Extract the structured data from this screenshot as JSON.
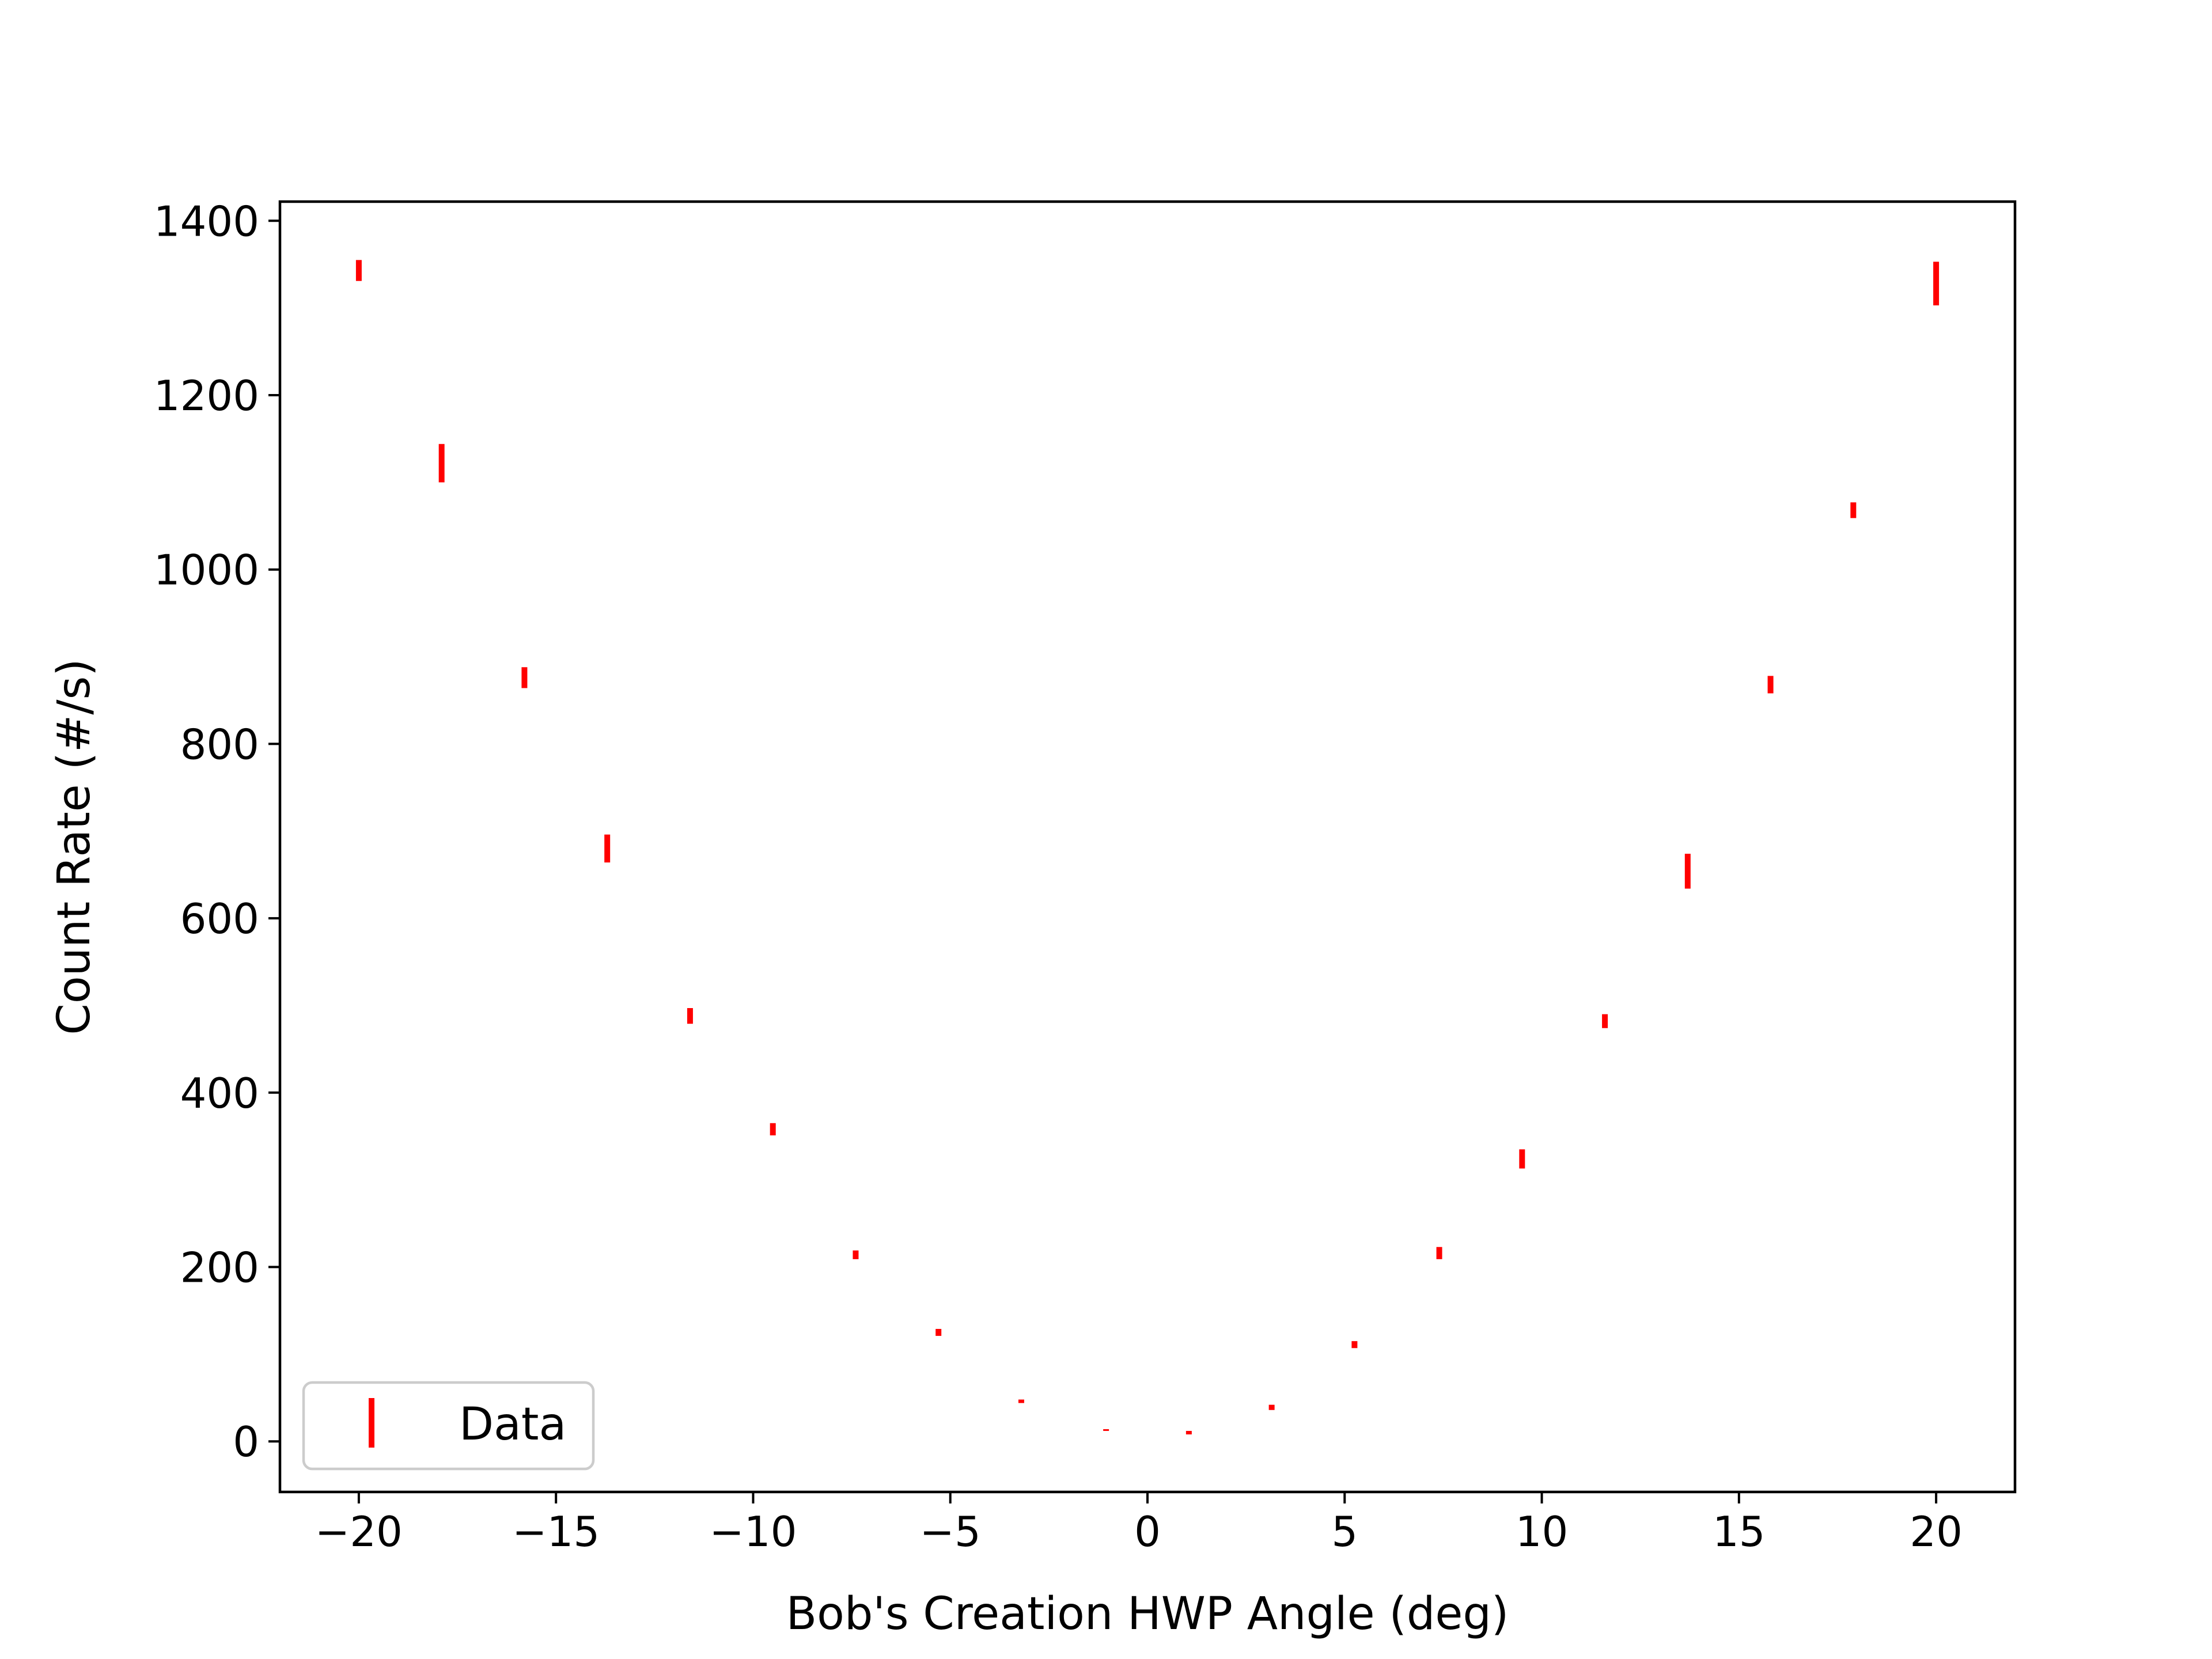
{
  "chart_data": {
    "type": "scatter",
    "title": "",
    "xlabel": "Bob's Creation HWP Angle (deg)",
    "ylabel": "Count Rate (#/s)",
    "xlim": [
      -22,
      22
    ],
    "ylim": [
      -58,
      1422
    ],
    "xticks": [
      -20,
      -15,
      -10,
      -5,
      0,
      5,
      10,
      15,
      20
    ],
    "xtick_labels": [
      "−20",
      "−15",
      "−10",
      "−5",
      "0",
      "5",
      "10",
      "15",
      "20"
    ],
    "yticks": [
      0,
      200,
      400,
      600,
      800,
      1000,
      1200,
      1400
    ],
    "ytick_labels": [
      "0",
      "200",
      "400",
      "600",
      "800",
      "1000",
      "1200",
      "1400"
    ],
    "grid": false,
    "legend": {
      "position": "lower-left",
      "entries": [
        "Data"
      ]
    },
    "marker": "errorbar",
    "series": [
      {
        "name": "Data",
        "color": "#ff0000",
        "x": [
          -20,
          -17.9,
          -15.8,
          -13.7,
          -11.6,
          -9.5,
          -7.4,
          -5.3,
          -3.2,
          -1.05,
          1.05,
          3.15,
          5.25,
          7.4,
          9.5,
          11.6,
          13.7,
          15.8,
          17.9,
          20
        ],
        "y": [
          1343,
          1122,
          876,
          680,
          488,
          358,
          214,
          125,
          46,
          13,
          10,
          39,
          111,
          216,
          324,
          482,
          654,
          868,
          1068,
          1328
        ],
        "yerr": [
          12,
          22,
          12,
          16,
          9,
          7,
          5,
          4,
          2,
          1,
          2,
          3,
          4,
          7,
          11,
          8,
          20,
          10,
          9,
          25
        ]
      }
    ]
  }
}
